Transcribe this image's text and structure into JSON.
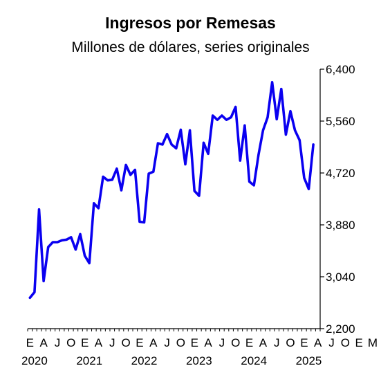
{
  "chart_data": {
    "type": "line",
    "title": "Ingresos por Remesas",
    "subtitle": "Millones de dólares, series originales",
    "xlabel": "",
    "ylabel": "",
    "ylim": [
      2200,
      6400
    ],
    "yticks": [
      "2,200",
      "3,040",
      "3,880",
      "4,720",
      "5,560",
      "6,400"
    ],
    "ytick_values": [
      2200,
      3040,
      3880,
      4720,
      5560,
      6400
    ],
    "y_axis_side": "right",
    "grid": false,
    "color": "#0a00f0",
    "x_start": "2020-01",
    "month_labels": [
      "E",
      "A",
      "J",
      "O",
      "E",
      "A",
      "J",
      "O",
      "E",
      "A",
      "J",
      "O",
      "E",
      "A",
      "J",
      "O",
      "E",
      "A",
      "J",
      "O",
      "E",
      "A",
      "J",
      "O",
      "E",
      "M"
    ],
    "year_labels": [
      {
        "label": "2020",
        "month": "2020-01"
      },
      {
        "label": "2021",
        "month": "2021-01"
      },
      {
        "label": "2022",
        "month": "2022-01"
      },
      {
        "label": "2023",
        "month": "2023-01"
      },
      {
        "label": "2024",
        "month": "2024-01"
      },
      {
        "label": "2025",
        "month": "2025-01"
      }
    ],
    "series": [
      {
        "values": [
          2700,
          2790,
          4130,
          2970,
          3520,
          3600,
          3600,
          3630,
          3640,
          3680,
          3480,
          3730,
          3380,
          3260,
          4230,
          4150,
          4660,
          4600,
          4610,
          4790,
          4440,
          4850,
          4690,
          4770,
          3930,
          3920,
          4710,
          4740,
          5200,
          5180,
          5350,
          5180,
          5120,
          5420,
          4860,
          5410,
          4430,
          4350,
          5210,
          5030,
          5650,
          5580,
          5650,
          5580,
          5620,
          5790,
          4920,
          5490,
          4580,
          4520,
          5010,
          5410,
          5620,
          6190,
          5590,
          6080,
          5340,
          5720,
          5410,
          5250,
          4640,
          4460,
          5180
        ]
      }
    ]
  }
}
